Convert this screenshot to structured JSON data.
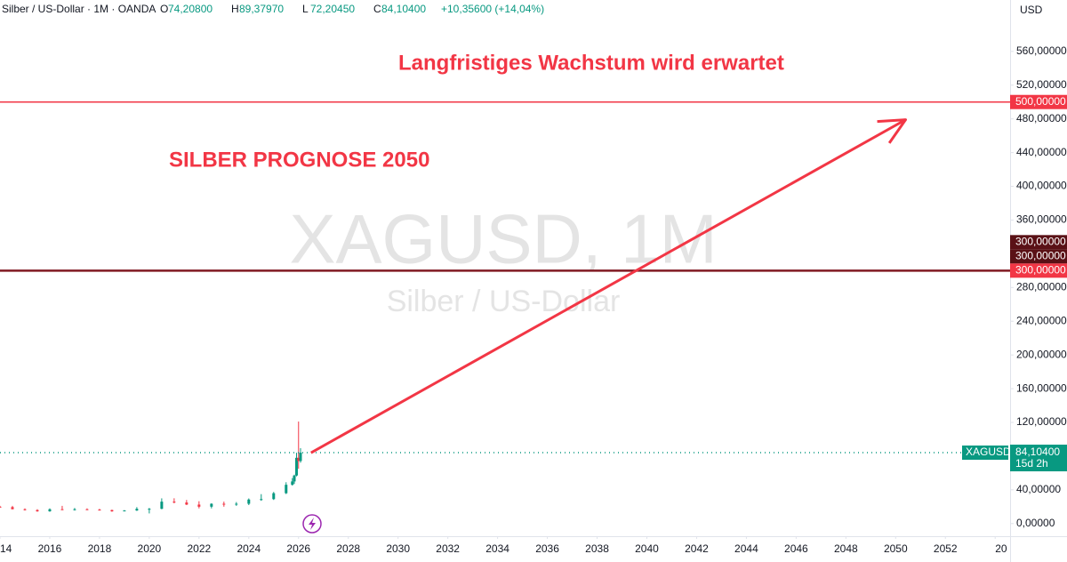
{
  "chart_data": {
    "type": "candlestick",
    "header": {
      "symbol": "Silber / US-Dollar · 1M · OANDA",
      "ohlc": [
        {
          "label": "O",
          "value": "74,20800"
        },
        {
          "label": "H",
          "value": "89,37970"
        },
        {
          "label": "L",
          "value": "72,20450"
        },
        {
          "label": "C",
          "value": "84,10400"
        }
      ],
      "change": "+10,35600 (+14,04%)"
    },
    "watermark": {
      "title": "XAGUSD, 1M",
      "subtitle": "Silber / US-Dollar"
    },
    "y_unit": "USD",
    "annotations": [
      {
        "text": "Langfristiges Wachstum wird erwartet",
        "color": "#f23645"
      },
      {
        "text": "SILBER PROGNOSE 2050",
        "color": "#f23645"
      }
    ],
    "arrow": {
      "x": [
        2026.5,
        2050.4
      ],
      "y": [
        84,
        479
      ],
      "color": "#f23645"
    },
    "hlines": [
      {
        "value": 500,
        "color": "#f23645",
        "labels": [
          "500,00000"
        ]
      },
      {
        "value": 300,
        "color": "#801922",
        "labels": [
          "300,00000",
          "300,00000",
          "300,00000"
        ]
      }
    ],
    "last_price": {
      "value": 84.104,
      "symbol": "XAGUSD",
      "label": "84,10400",
      "countdown": "15d 2h",
      "color": "#089981"
    },
    "up_color": "#089981",
    "down_color": "#f23645",
    "xlim": [
      2014,
      2054.6
    ],
    "ylim": [
      -15,
      621
    ],
    "xticks": [
      {
        "value": 2014,
        "label": "14"
      },
      2016,
      2018,
      2020,
      2022,
      2024,
      2026,
      2028,
      2030,
      2032,
      2034,
      2036,
      2038,
      2040,
      2042,
      2044,
      2046,
      2048,
      2050,
      2052,
      {
        "value": 2054,
        "label": "20"
      }
    ],
    "yticks": [
      {
        "value": 0,
        "label": "0,00000"
      },
      {
        "value": 40,
        "label": "40,00000"
      },
      {
        "value": 120,
        "label": "120,00000"
      },
      {
        "value": 160,
        "label": "160,00000"
      },
      {
        "value": 200,
        "label": "200,00000"
      },
      {
        "value": 240,
        "label": "240,00000"
      },
      {
        "value": 280,
        "label": "280,00000"
      },
      {
        "value": 360,
        "label": "360,00000"
      },
      {
        "value": 400,
        "label": "400,00000"
      },
      {
        "value": 440,
        "label": "440,00000"
      },
      {
        "value": 480,
        "label": "480,00000"
      },
      {
        "value": 520,
        "label": "520,00000"
      },
      {
        "value": 560,
        "label": "560,00000"
      }
    ],
    "x": [
      2014.0,
      2014.5,
      2015.0,
      2015.5,
      2016.0,
      2016.5,
      2017.0,
      2017.5,
      2018.0,
      2018.5,
      2019.0,
      2019.5,
      2020.0,
      2020.5,
      2021.0,
      2021.5,
      2022.0,
      2022.5,
      2023.0,
      2023.5,
      2024.0,
      2024.5,
      2025.0,
      2025.5,
      2025.75,
      2025.83,
      2025.92,
      2026.0,
      2026.08
    ],
    "open": [
      20,
      19.5,
      17,
      16,
      14.5,
      17,
      16.5,
      17,
      16.5,
      16,
      14.5,
      15.5,
      17.5,
      17.5,
      26,
      25,
      22.5,
      20,
      23.5,
      23,
      23.5,
      28.5,
      29,
      36,
      46,
      50,
      57,
      78,
      74.2
    ],
    "high": [
      21,
      21,
      18,
      17,
      18,
      21,
      18.5,
      18,
      17.5,
      16.5,
      16,
      19.5,
      18.5,
      29.9,
      30,
      28,
      26.5,
      24,
      26,
      25.5,
      29.8,
      34.9,
      37.5,
      49,
      54,
      58,
      84,
      121,
      89.38
    ],
    "low": [
      19,
      17,
      15.5,
      14,
      14,
      16,
      15.5,
      16,
      16,
      14,
      14.5,
      15,
      12,
      17,
      24,
      22,
      18,
      18,
      20,
      21,
      21.9,
      27,
      28,
      35,
      45,
      47,
      56,
      65,
      72.2
    ],
    "close": [
      19.5,
      17,
      16,
      14.5,
      17,
      16.5,
      17,
      16.5,
      16,
      14.5,
      15.5,
      17.5,
      17.5,
      26,
      25,
      22.5,
      20,
      23.5,
      23,
      23.5,
      28.5,
      29,
      36,
      46,
      50,
      57,
      78,
      74.2,
      84.1
    ],
    "grid": false
  }
}
